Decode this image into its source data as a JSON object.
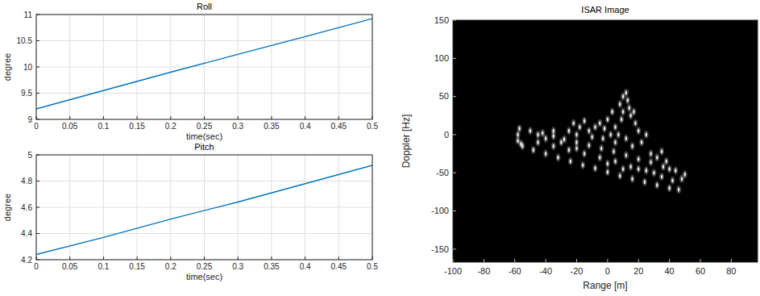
{
  "chart_data": [
    {
      "type": "line",
      "title": "Roll",
      "x_label": "time(sec)",
      "y_label": "degree",
      "x": [
        0,
        0.1,
        0.2,
        0.3,
        0.4,
        0.5
      ],
      "values": [
        9.2,
        9.55,
        9.9,
        10.24,
        10.58,
        10.92
      ],
      "xlim": [
        0,
        0.5
      ],
      "xticks": [
        0,
        0.05,
        0.1,
        0.15,
        0.2,
        0.25,
        0.3,
        0.35,
        0.4,
        0.45,
        0.5
      ],
      "ylim": [
        9,
        11
      ],
      "yticks": [
        9,
        9.5,
        10,
        10.5,
        11
      ],
      "grid": true,
      "color": "#0072bd"
    },
    {
      "type": "line",
      "title": "Pitch",
      "x_label": "time(sec)",
      "y_label": "degree",
      "x": [
        0,
        0.1,
        0.2,
        0.3,
        0.4,
        0.5
      ],
      "values": [
        4.24,
        4.37,
        4.51,
        4.64,
        4.78,
        4.92
      ],
      "xlim": [
        0,
        0.5
      ],
      "xticks": [
        0,
        0.05,
        0.1,
        0.15,
        0.2,
        0.25,
        0.3,
        0.35,
        0.4,
        0.45,
        0.5
      ],
      "ylim": [
        4.2,
        5
      ],
      "yticks": [
        4.2,
        4.4,
        4.6,
        4.8,
        5
      ],
      "grid": true,
      "color": "#0072bd"
    },
    {
      "type": "scatter",
      "title": "ISAR Image",
      "x_label": "Range [m]",
      "y_label": "Doppler [Hz]",
      "x": [
        -57,
        -50,
        -42,
        -35,
        -28,
        -20,
        -12,
        -4,
        4,
        12,
        20,
        28,
        36,
        44,
        50,
        -55,
        -48,
        -40,
        -32,
        -24,
        -16,
        -8,
        0,
        8,
        16,
        24,
        32,
        40,
        46,
        -58,
        -58,
        -56,
        -45,
        -35,
        -25,
        -15,
        -5,
        5,
        15,
        25,
        35,
        42,
        48,
        30,
        20,
        -30,
        -20,
        0,
        10,
        -25,
        -22,
        -18,
        -15,
        -12,
        -20,
        -8,
        -5,
        -2,
        0,
        3,
        5,
        8,
        10,
        12,
        13,
        10,
        15,
        18,
        20,
        7,
        12,
        16,
        22,
        25,
        5,
        2,
        14,
        9,
        17,
        -3,
        -10,
        -45,
        -40,
        28,
        32,
        38,
        35,
        40,
        -35
      ],
      "values": [
        8,
        5,
        2,
        -2,
        -6,
        -10,
        -14,
        -18,
        -22,
        -27,
        -32,
        -36,
        -42,
        -47,
        -52,
        -15,
        -20,
        -25,
        -30,
        -35,
        -40,
        -44,
        -49,
        -54,
        -58,
        -62,
        -66,
        -70,
        -72,
        0,
        -8,
        -12,
        -10,
        -15,
        -20,
        -25,
        -30,
        -35,
        -42,
        -47,
        -55,
        -60,
        -58,
        -50,
        -45,
        -10,
        -18,
        -38,
        -45,
        5,
        15,
        10,
        18,
        5,
        0,
        10,
        15,
        8,
        20,
        30,
        10,
        40,
        50,
        55,
        45,
        30,
        25,
        15,
        5,
        0,
        -5,
        -15,
        -10,
        0,
        -10,
        0,
        35,
        20,
        30,
        -5,
        -3,
        0,
        -5,
        -25,
        -30,
        -35,
        -22,
        -45,
        5
      ],
      "xlim": [
        -100,
        97
      ],
      "xticks": [
        -100,
        -80,
        -60,
        -40,
        -20,
        0,
        20,
        40,
        60,
        80
      ],
      "ylim": [
        -167,
        150
      ],
      "yticks": [
        -150,
        -100,
        -50,
        0,
        50,
        100,
        150
      ],
      "grid": false,
      "color": "#ffffff"
    }
  ]
}
